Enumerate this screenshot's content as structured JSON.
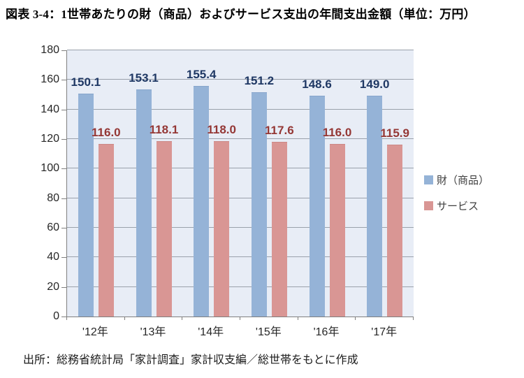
{
  "page": {
    "title": "図表 3-4：1世帯あたりの財（商品）およびサービス支出の年間支出金額（単位：万円）",
    "source": "出所：総務省統計局「家計調査」家計収支編／総世帯をもとに作成"
  },
  "chart_data": {
    "type": "bar",
    "title": "1世帯あたりの財（商品）およびサービス支出の年間支出金額（単位：万円）",
    "categories": [
      "'12年",
      "'13年",
      "'14年",
      "'15年",
      "'16年",
      "'17年"
    ],
    "series": [
      {
        "name": "財（商品）",
        "values": [
          150.1,
          153.1,
          155.4,
          151.2,
          148.6,
          149.0
        ],
        "bar_color": "#95b3d7",
        "bar_border_color": "#87a5cc",
        "label_color": "#1f3864"
      },
      {
        "name": "サービス",
        "values": [
          116.0,
          118.1,
          118.0,
          117.6,
          116.0,
          115.9
        ],
        "bar_color": "#d99694",
        "bar_border_color": "#cc8886",
        "label_color": "#943735"
      }
    ],
    "xlabel": "",
    "ylabel": "",
    "ylim": [
      0,
      180
    ],
    "ytick_step": 20,
    "grid": true,
    "legend_position": "right",
    "plot_background": "#e8edf6",
    "value_label_decimals": 1
  }
}
